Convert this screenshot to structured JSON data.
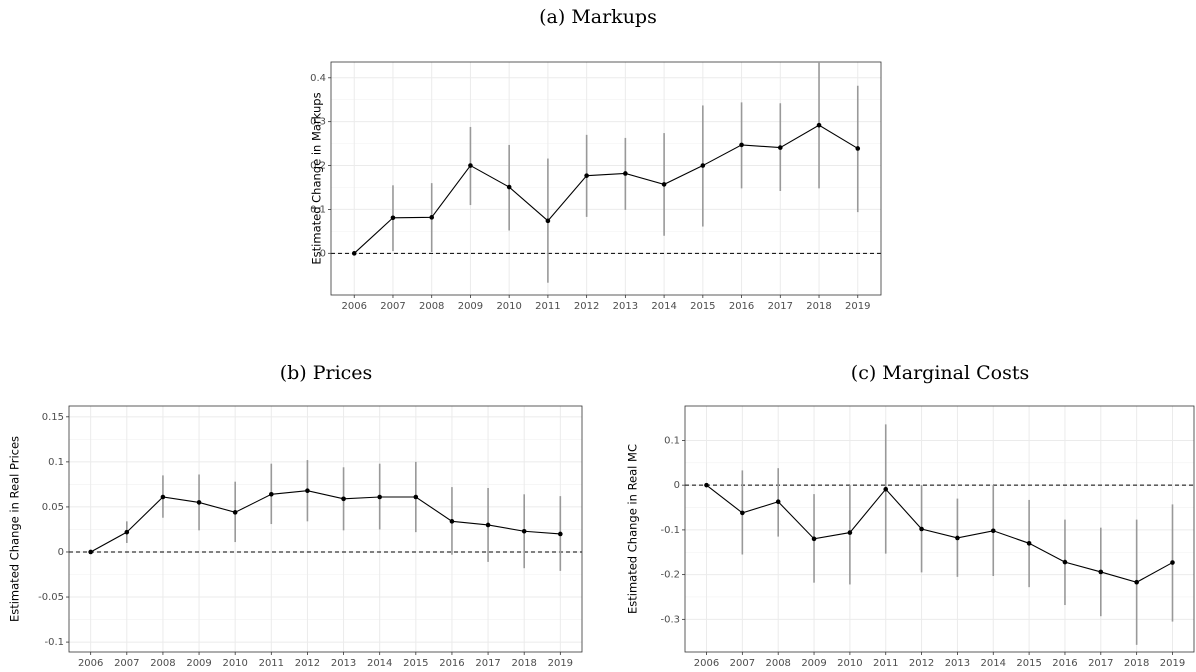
{
  "chart_data": [
    {
      "type": "line",
      "title": "(a) Markups",
      "y_label": "Estimated Change in Markups",
      "categories": [
        "2006",
        "2007",
        "2008",
        "2009",
        "2010",
        "2011",
        "2012",
        "2013",
        "2014",
        "2015",
        "2016",
        "2017",
        "2018",
        "2019"
      ],
      "values": [
        0,
        0.081,
        0.082,
        0.2,
        0.151,
        0.074,
        0.177,
        0.182,
        0.157,
        0.2,
        0.247,
        0.241,
        0.292,
        0.239
      ],
      "ci_lower": [
        0,
        0.005,
        0.003,
        0.11,
        0.052,
        -0.067,
        0.083,
        0.099,
        0.04,
        0.061,
        0.148,
        0.142,
        0.148,
        0.094
      ],
      "ci_upper": [
        0,
        0.155,
        0.16,
        0.288,
        0.247,
        0.216,
        0.27,
        0.263,
        0.274,
        0.337,
        0.344,
        0.342,
        0.434,
        0.382
      ],
      "color": "#000000",
      "error_color": "#999999",
      "ylim": [
        -0.095,
        0.436
      ],
      "yticks": [
        0,
        0.1,
        0.2,
        0.3,
        0.4
      ],
      "hline": 0,
      "grid": true
    },
    {
      "type": "line",
      "title": "(b) Prices",
      "y_label": "Estimated Change in Real Prices",
      "categories": [
        "2006",
        "2007",
        "2008",
        "2009",
        "2010",
        "2011",
        "2012",
        "2013",
        "2014",
        "2015",
        "2016",
        "2017",
        "2018",
        "2019"
      ],
      "values": [
        0,
        0.022,
        0.061,
        0.055,
        0.044,
        0.064,
        0.068,
        0.059,
        0.061,
        0.061,
        0.034,
        0.03,
        0.023,
        0.02
      ],
      "ci_lower": [
        0,
        0.01,
        0.038,
        0.024,
        0.011,
        0.031,
        0.034,
        0.024,
        0.025,
        0.022,
        -0.003,
        -0.011,
        -0.018,
        -0.021
      ],
      "ci_upper": [
        0,
        0.034,
        0.085,
        0.086,
        0.078,
        0.098,
        0.102,
        0.094,
        0.098,
        0.1,
        0.072,
        0.071,
        0.064,
        0.062
      ],
      "color": "#000000",
      "error_color": "#999999",
      "ylim": [
        -0.111,
        0.162
      ],
      "yticks": [
        -0.1,
        -0.05,
        0,
        0.05,
        0.1,
        0.15
      ],
      "hline": 0,
      "grid": true
    },
    {
      "type": "line",
      "title": "(c) Marginal Costs",
      "y_label": "Estimated Change in Real MC",
      "categories": [
        "2006",
        "2007",
        "2008",
        "2009",
        "2010",
        "2011",
        "2012",
        "2013",
        "2014",
        "2015",
        "2016",
        "2017",
        "2018",
        "2019"
      ],
      "values": [
        0,
        -0.062,
        -0.037,
        -0.12,
        -0.106,
        -0.009,
        -0.098,
        -0.118,
        -0.102,
        -0.13,
        -0.172,
        -0.194,
        -0.217,
        -0.173
      ],
      "ci_lower": [
        0,
        -0.155,
        -0.115,
        -0.218,
        -0.222,
        -0.153,
        -0.195,
        -0.205,
        -0.203,
        -0.228,
        -0.268,
        -0.293,
        -0.357,
        -0.305
      ],
      "ci_upper": [
        0,
        0.033,
        0.038,
        -0.02,
        0.0,
        0.136,
        0.0,
        -0.03,
        0.0,
        -0.033,
        -0.077,
        -0.095,
        -0.077,
        -0.043
      ],
      "color": "#000000",
      "error_color": "#999999",
      "ylim": [
        -0.373,
        0.177
      ],
      "yticks": [
        -0.3,
        -0.2,
        -0.1,
        0,
        0.1
      ],
      "hline": 0,
      "grid": true
    }
  ]
}
